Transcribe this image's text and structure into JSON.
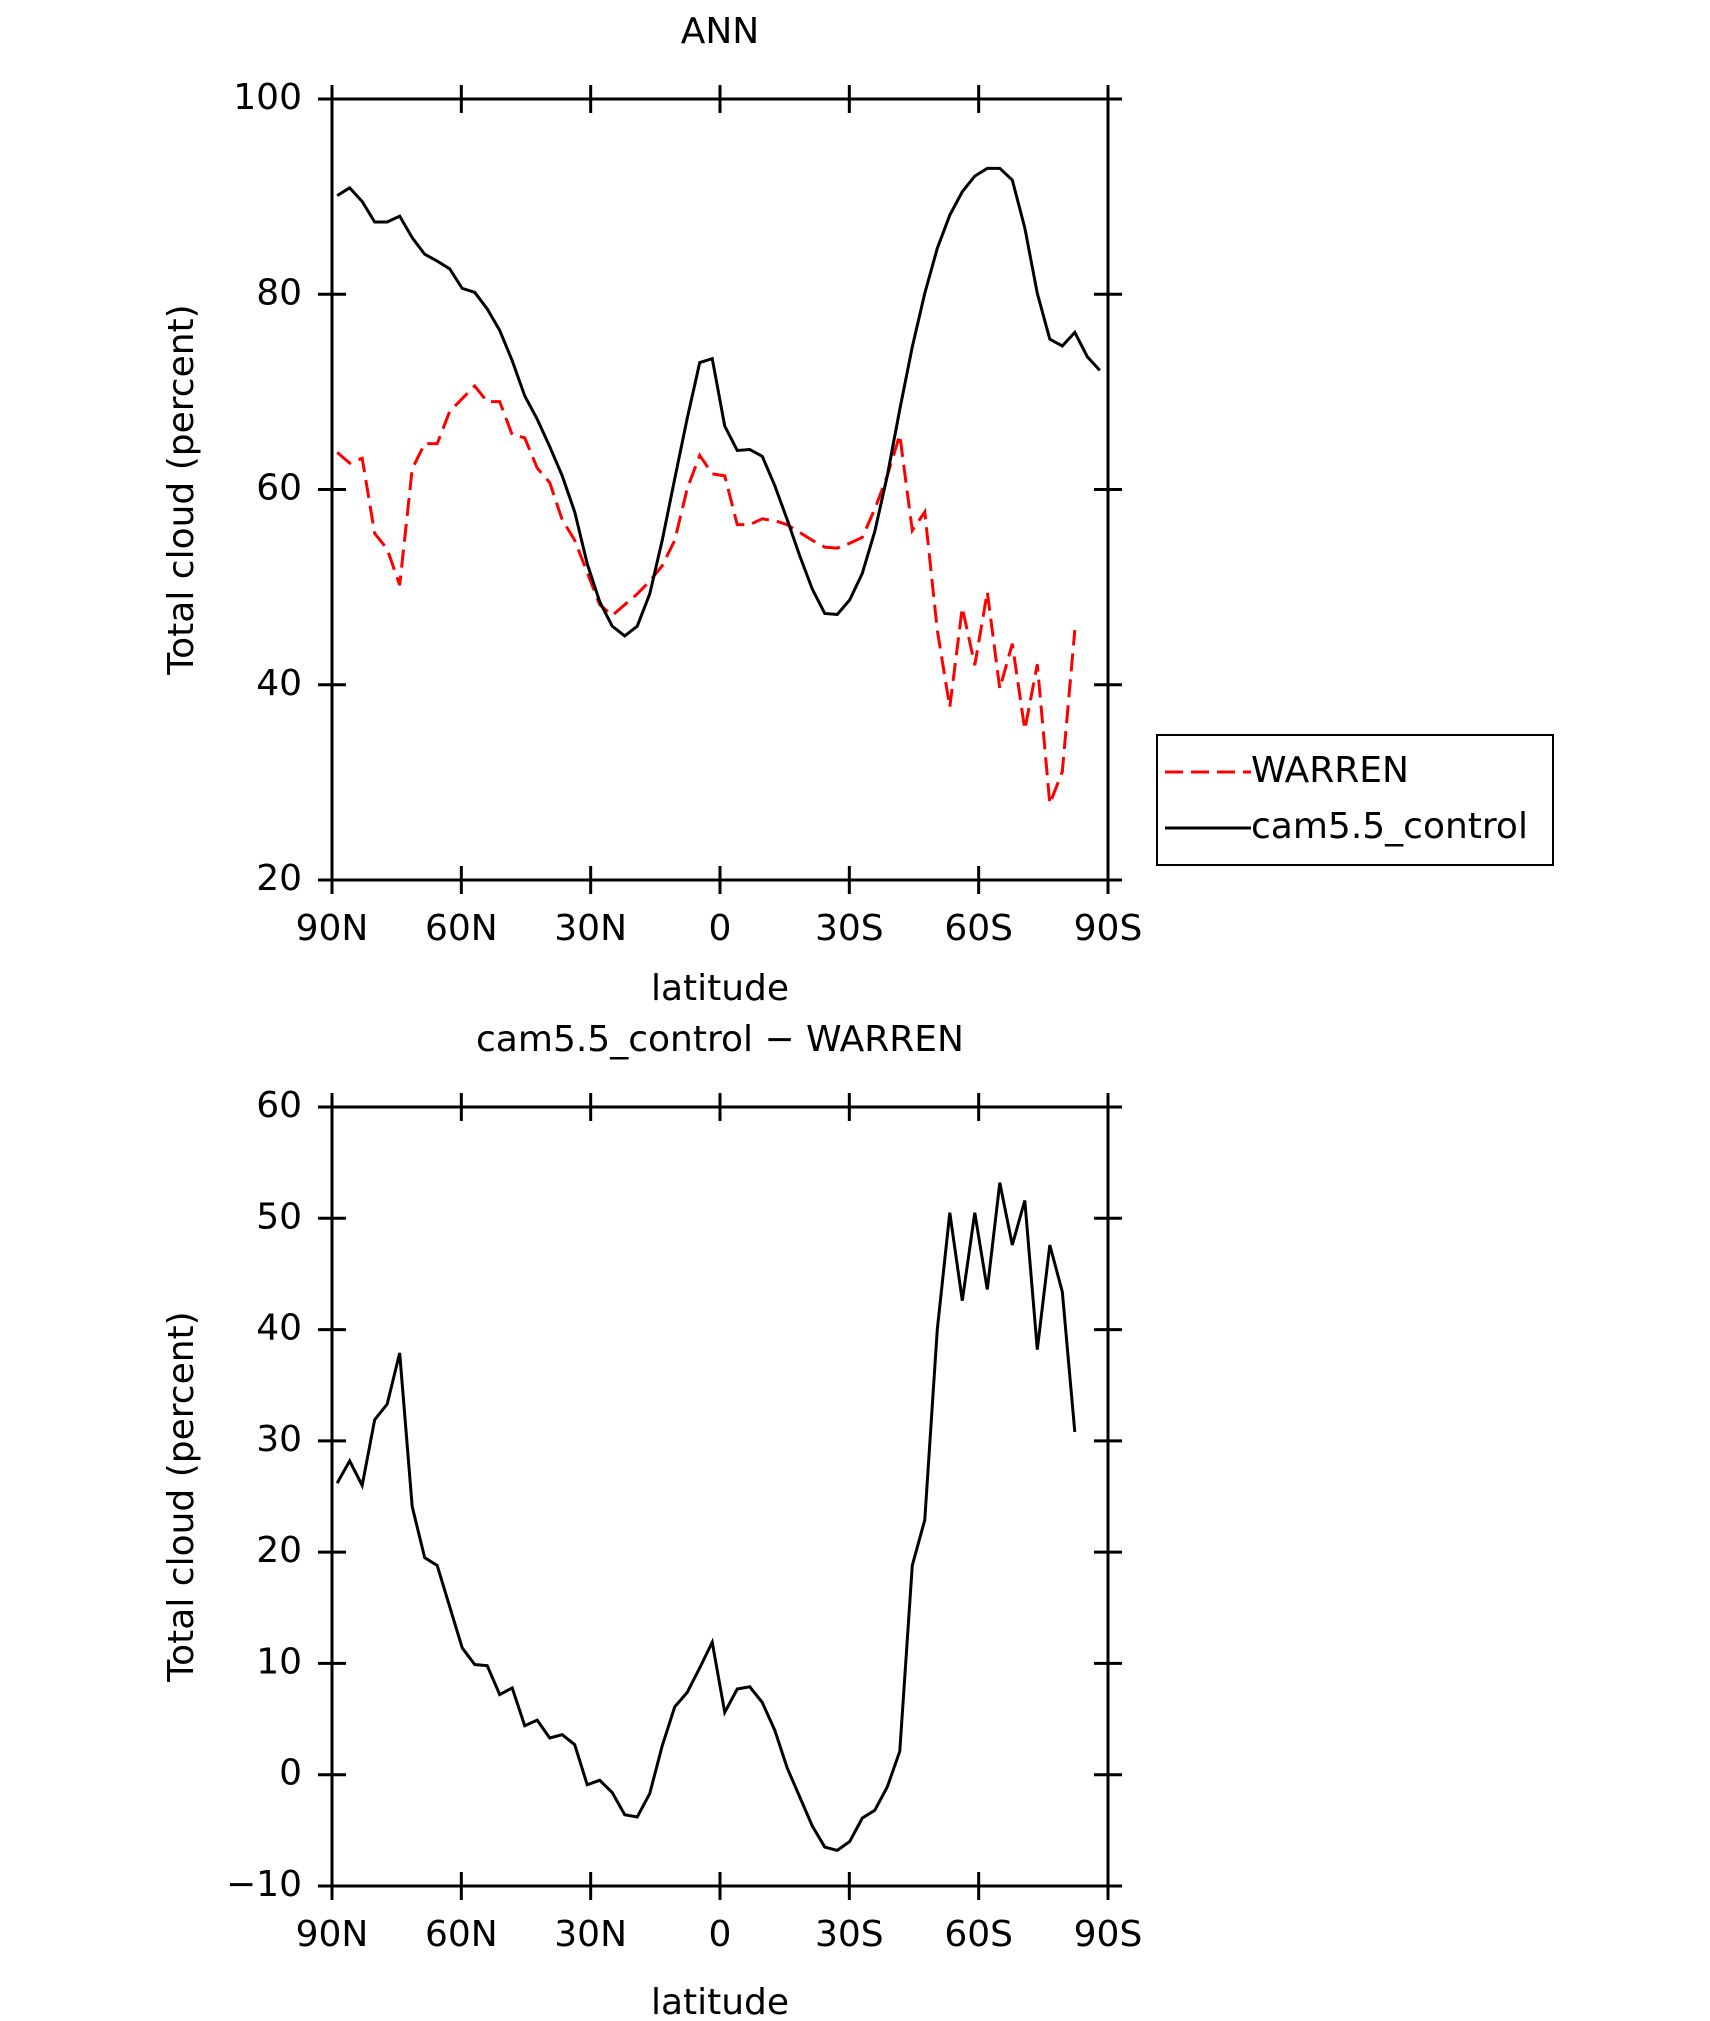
{
  "chart_data": [
    {
      "type": "line",
      "title": "ANN",
      "xlabel": "latitude",
      "ylabel": "Total cloud (percent)",
      "x": [
        88.8,
        85.9,
        83.0,
        80.1,
        77.2,
        74.3,
        71.4,
        68.5,
        65.6,
        62.7,
        59.8,
        56.9,
        54.0,
        51.1,
        48.2,
        45.3,
        42.4,
        39.5,
        36.6,
        33.7,
        30.8,
        27.9,
        25.0,
        22.1,
        19.2,
        16.3,
        13.4,
        10.5,
        7.6,
        4.7,
        1.8,
        -1.1,
        -4.0,
        -6.9,
        -9.8,
        -12.7,
        -15.6,
        -18.5,
        -21.4,
        -24.3,
        -27.2,
        -30.1,
        -33.0,
        -35.9,
        -38.8,
        -41.7,
        -44.6,
        -47.5,
        -50.4,
        -53.3,
        -56.2,
        -59.1,
        -62.0,
        -64.9,
        -67.8,
        -70.7,
        -73.6,
        -76.5,
        -79.4,
        -82.3,
        -85.2,
        -88.1
      ],
      "series": [
        {
          "name": "WARREN",
          "color": "#ff0000",
          "dashed": true,
          "values": [
            63.8,
            62.7,
            63.2,
            55.5,
            53.9,
            50.2,
            62.1,
            64.7,
            64.7,
            68.0,
            69.3,
            70.6,
            69.0,
            69.0,
            65.6,
            65.3,
            62.2,
            60.7,
            56.9,
            54.8,
            51.5,
            48.2,
            47.1,
            48.2,
            49.3,
            50.6,
            52.2,
            54.8,
            60.1,
            63.5,
            61.6,
            61.4,
            56.4,
            56.4,
            57.0,
            56.8,
            56.4,
            55.6,
            54.8,
            54.1,
            54.0,
            54.5,
            55.1,
            58.0,
            61.4,
            65.6,
            55.8,
            57.7,
            45.6,
            37.7,
            47.9,
            42.0,
            49.5,
            39.6,
            44.2,
            35.4,
            42.1,
            27.8,
            31.1,
            45.6,
            null,
            null
          ]
        },
        {
          "name": "cam5.5_control",
          "color": "#000000",
          "dashed": false,
          "values": [
            90.1,
            90.9,
            89.5,
            87.4,
            87.4,
            88.0,
            85.8,
            84.1,
            83.4,
            82.6,
            80.6,
            80.2,
            78.5,
            76.3,
            73.2,
            69.6,
            67.2,
            64.4,
            61.4,
            57.7,
            52.4,
            48.5,
            46.0,
            45.0,
            46.0,
            49.3,
            54.8,
            61.1,
            67.3,
            73.0,
            73.4,
            66.5,
            64.0,
            64.1,
            63.4,
            60.4,
            56.9,
            53.2,
            49.8,
            47.3,
            47.2,
            48.7,
            51.4,
            55.7,
            61.4,
            68.2,
            74.6,
            80.1,
            84.7,
            88.1,
            90.5,
            92.1,
            92.9,
            92.9,
            91.7,
            86.8,
            80.1,
            75.4,
            74.7,
            76.1,
            73.6,
            72.2
          ]
        }
      ],
      "xlim": [
        90,
        -90
      ],
      "xticks": [
        {
          "value": 90,
          "label": "90N"
        },
        {
          "value": 60,
          "label": "60N"
        },
        {
          "value": 30,
          "label": "30N"
        },
        0,
        {
          "value": -30,
          "label": "30S"
        },
        {
          "value": -60,
          "label": "60S"
        },
        {
          "value": -90,
          "label": "90S"
        }
      ],
      "ylim": [
        20,
        100
      ],
      "yticks": [
        20,
        40,
        60,
        80,
        100
      ],
      "legend": "outside-right"
    },
    {
      "type": "line",
      "title": "cam5.5_control − WARREN",
      "xlabel": "latitude",
      "ylabel": "Total cloud (percent)",
      "x": [
        88.8,
        85.9,
        83.0,
        80.1,
        77.2,
        74.3,
        71.4,
        68.5,
        65.6,
        62.7,
        59.8,
        56.9,
        54.0,
        51.1,
        48.2,
        45.3,
        42.4,
        39.5,
        36.6,
        33.7,
        30.8,
        27.9,
        25.0,
        22.1,
        19.2,
        16.3,
        13.4,
        10.5,
        7.6,
        4.7,
        1.8,
        -1.1,
        -4.0,
        -6.9,
        -9.8,
        -12.7,
        -15.6,
        -18.5,
        -21.4,
        -24.3,
        -27.2,
        -30.1,
        -33.0,
        -35.9,
        -38.8,
        -41.7,
        -44.6,
        -47.5,
        -50.4,
        -53.3,
        -56.2,
        -59.1,
        -62.0,
        -64.9,
        -67.8,
        -70.7,
        -73.6,
        -76.5,
        -79.4,
        -82.3,
        -85.2,
        -88.1
      ],
      "color": "#000000",
      "values": [
        26.2,
        28.2,
        26.0,
        31.9,
        33.3,
        37.9,
        24.1,
        19.5,
        18.8,
        15.1,
        11.4,
        9.9,
        9.8,
        7.2,
        7.8,
        4.4,
        4.9,
        3.3,
        3.6,
        2.7,
        -0.9,
        -0.5,
        -1.6,
        -3.6,
        -3.8,
        -1.7,
        2.6,
        6.1,
        7.4,
        9.6,
        11.9,
        5.6,
        7.7,
        7.9,
        6.5,
        4.0,
        0.6,
        -2.0,
        -4.6,
        -6.5,
        -6.8,
        -6.0,
        -3.9,
        -3.2,
        -1.1,
        2.1,
        18.8,
        22.9,
        40.0,
        50.5,
        42.6,
        50.5,
        43.6,
        53.2,
        47.6,
        51.6,
        38.2,
        47.6,
        43.4,
        30.8,
        null,
        null
      ],
      "xlim": [
        90,
        -90
      ],
      "xticks": [
        {
          "value": 90,
          "label": "90N"
        },
        {
          "value": 60,
          "label": "60N"
        },
        {
          "value": 30,
          "label": "30N"
        },
        0,
        {
          "value": -30,
          "label": "30S"
        },
        {
          "value": -60,
          "label": "60S"
        },
        {
          "value": -90,
          "label": "90S"
        }
      ],
      "ylim": [
        -10,
        60
      ],
      "yticks": [
        {
          "value": -10,
          "label": "−10"
        },
        0,
        10,
        20,
        30,
        40,
        50,
        60
      ]
    }
  ]
}
